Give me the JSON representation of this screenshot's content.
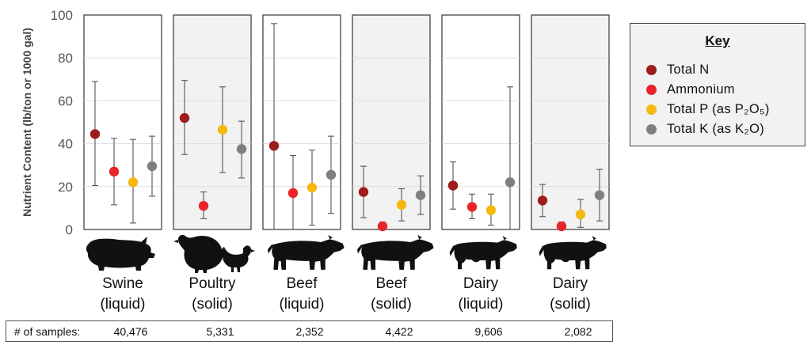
{
  "chart_data": {
    "type": "scatter",
    "ylabel": "Nutrient Content (lb/ton or 1000 gal)",
    "ylim": [
      0,
      100
    ],
    "yticks": [
      0,
      20,
      40,
      60,
      80,
      100
    ],
    "categories": [
      {
        "line1": "Swine",
        "line2": "(liquid)",
        "icon": "pig-icon",
        "shaded": false
      },
      {
        "line1": "Poultry",
        "line2": "(solid)",
        "icon": "turkey-chicken-icon",
        "shaded": true
      },
      {
        "line1": "Beef",
        "line2": "(liquid)",
        "icon": "beef-cow-icon",
        "shaded": false
      },
      {
        "line1": "Beef",
        "line2": "(solid)",
        "icon": "beef-cow-icon",
        "shaded": true
      },
      {
        "line1": "Dairy",
        "line2": "(liquid)",
        "icon": "dairy-cow-icon",
        "shaded": false
      },
      {
        "line1": "Dairy",
        "line2": "(solid)",
        "icon": "dairy-cow-icon",
        "shaded": true
      }
    ],
    "series": [
      {
        "name": "Total N",
        "color": "#9e1c1c",
        "values": [
          44.5,
          52,
          39,
          17.5,
          20.5,
          13.5
        ],
        "low": [
          20.5,
          35,
          0,
          5.5,
          9.5,
          6
        ],
        "high": [
          69,
          69.5,
          96,
          29.5,
          31.5,
          21
        ]
      },
      {
        "name": "Ammonium",
        "color": "#e8252a",
        "values": [
          27,
          11,
          17,
          1.5,
          10.5,
          1.5
        ],
        "low": [
          11.5,
          5,
          0,
          0,
          5,
          0
        ],
        "high": [
          42.5,
          17.5,
          34.5,
          3.5,
          16.5,
          3.5
        ]
      },
      {
        "name": "Total P (as P₂O₅)",
        "color": "#f5b80f",
        "values": [
          22,
          46.5,
          19.5,
          11.5,
          9,
          7
        ],
        "low": [
          3,
          26.5,
          2,
          4,
          2,
          1
        ],
        "high": [
          42,
          66.5,
          37,
          19,
          16.5,
          14
        ]
      },
      {
        "name": "Total K (as K₂O)",
        "color": "#7f7f7f",
        "values": [
          29.5,
          37.5,
          25.5,
          16,
          22,
          16
        ],
        "low": [
          15.5,
          24,
          7.5,
          7,
          0,
          4
        ],
        "high": [
          43.5,
          50.5,
          43.5,
          25,
          66.5,
          28
        ]
      }
    ],
    "grid": true,
    "legend_position": "right"
  },
  "key": {
    "title": "Key",
    "items": [
      {
        "label": "Total N",
        "color": "#9e1c1c"
      },
      {
        "label": "Ammonium",
        "color": "#e8252a"
      },
      {
        "label": "Total P (as P₂O₅)",
        "color": "#f5b80f"
      },
      {
        "label": "Total K (as K₂O)",
        "color": "#7f7f7f"
      }
    ]
  },
  "samples": {
    "label": "# of samples:",
    "values": [
      "40,476",
      "5,331",
      "2,352",
      "4,422",
      "9,606",
      "2,082"
    ]
  }
}
